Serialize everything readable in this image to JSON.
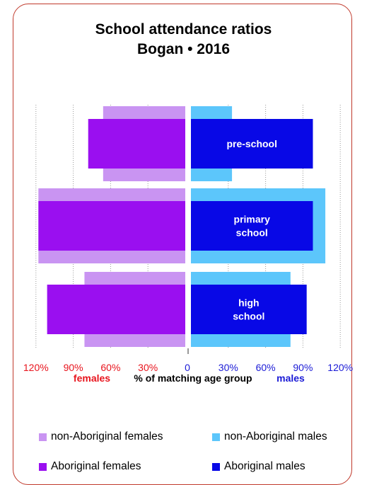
{
  "chart_data": {
    "type": "bar",
    "title": "School attendance ratios",
    "subtitle": "Bogan • 2016",
    "xlabel": "% of matching age group",
    "left_label": "females",
    "right_label": "males",
    "xlim": [
      0,
      120
    ],
    "left_ticks": [
      "120%",
      "90%",
      "60%",
      "30%"
    ],
    "right_ticks": [
      "0",
      "30%",
      "60%",
      "90%",
      "120%"
    ],
    "categories": [
      "pre-school",
      "primary school",
      "high school"
    ],
    "category_lines": [
      [
        "pre-school"
      ],
      [
        "primary",
        "school"
      ],
      [
        "high",
        "school"
      ]
    ],
    "series": [
      {
        "name": "non-Aboriginal females",
        "side": "left",
        "values": [
          66,
          118,
          81
        ]
      },
      {
        "name": "Aboriginal females",
        "side": "left",
        "values": [
          78,
          118,
          111
        ]
      },
      {
        "name": "non-Aboriginal males",
        "side": "right",
        "values": [
          33,
          108,
          80
        ]
      },
      {
        "name": "Aboriginal males",
        "side": "right",
        "values": [
          98,
          98,
          93
        ]
      }
    ],
    "colors": {
      "non_aboriginal_females": "#c994f2",
      "aboriginal_females": "#9a0ff0",
      "non_aboriginal_males": "#5cc6fb",
      "aboriginal_males": "#0808e6",
      "left_axis_text": "#e8141d",
      "right_axis_text": "#1a1ad6"
    },
    "grid": true,
    "legend_position": "bottom"
  }
}
